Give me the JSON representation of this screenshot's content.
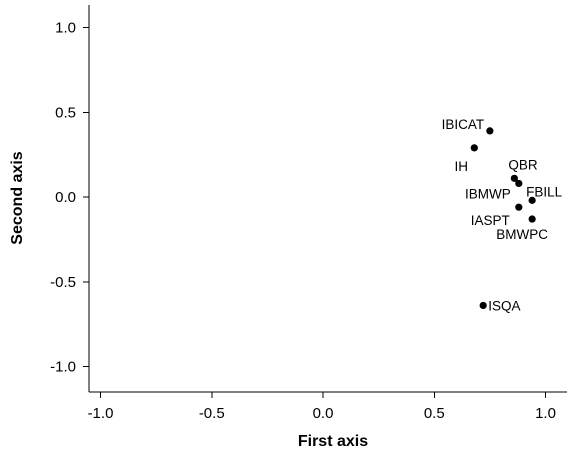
{
  "chart_data": {
    "type": "scatter",
    "title": "",
    "xlabel": "First axis",
    "ylabel": "Second axis",
    "xlim": [
      -1.1,
      1.1
    ],
    "ylim": [
      -1.12,
      1.12
    ],
    "xticks": [
      -1.0,
      -0.5,
      0.0,
      0.5,
      1.0
    ],
    "xtick_labels": [
      "-1.0",
      "-0.5",
      "0.0",
      "0.5",
      "1.0"
    ],
    "yticks": [
      -1.0,
      -0.5,
      0.0,
      0.5,
      1.0
    ],
    "ytick_labels": [
      "-1.0",
      "-0.5",
      "0.0",
      "0.5",
      "1.0"
    ],
    "grid": false,
    "points": [
      {
        "label": "IBICAT",
        "x": 0.75,
        "y": 0.39
      },
      {
        "label": "IH",
        "x": 0.68,
        "y": 0.29
      },
      {
        "label": "QBR",
        "x": 0.86,
        "y": 0.11
      },
      {
        "label": "IBMWP",
        "x": 0.88,
        "y": 0.08
      },
      {
        "label": "FBILL",
        "x": 0.94,
        "y": -0.02
      },
      {
        "label": "IASPT",
        "x": 0.88,
        "y": -0.06
      },
      {
        "label": "BMWPC",
        "x": 0.94,
        "y": -0.13
      },
      {
        "label": "ISQA",
        "x": 0.72,
        "y": -0.64
      }
    ]
  }
}
